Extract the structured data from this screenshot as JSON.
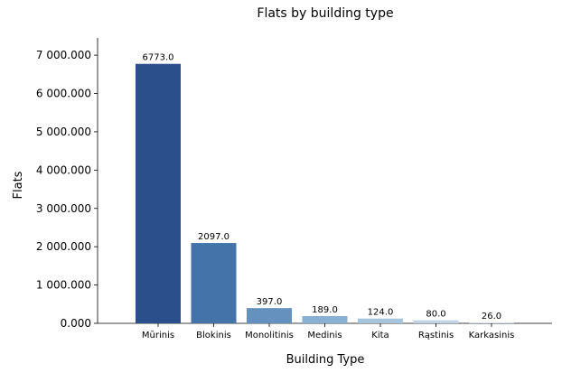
{
  "chart_data": {
    "type": "bar",
    "title": "Flats by building type",
    "xlabel": "Building Type",
    "ylabel": "Flats",
    "categories": [
      "Mūrinis",
      "Blokinis",
      "Monolitinis",
      "Medinis",
      "Kita",
      "Rąstinis",
      "Karkasinis"
    ],
    "values": [
      6773.0,
      2097.0,
      397.0,
      189.0,
      124.0,
      80.0,
      26.0
    ],
    "value_labels": [
      "6773.0",
      "2097.0",
      "397.0",
      "189.0",
      "124.0",
      "80.0",
      "26.0"
    ],
    "colors": [
      "#2b4f8a",
      "#4373a8",
      "#6491bd",
      "#88b0d2",
      "#a5c4de",
      "#c0d4e6",
      "#d7e2ee"
    ],
    "ylim": [
      0,
      7450
    ],
    "yticks": [
      0,
      1000,
      2000,
      3000,
      4000,
      5000,
      6000,
      7000
    ],
    "ytick_labels": [
      "0.000",
      "1 000.000",
      "2 000.000",
      "3 000.000",
      "4 000.000",
      "5 000.000",
      "6 000.000",
      "7 000.000"
    ],
    "grid": false,
    "legend": "none"
  }
}
